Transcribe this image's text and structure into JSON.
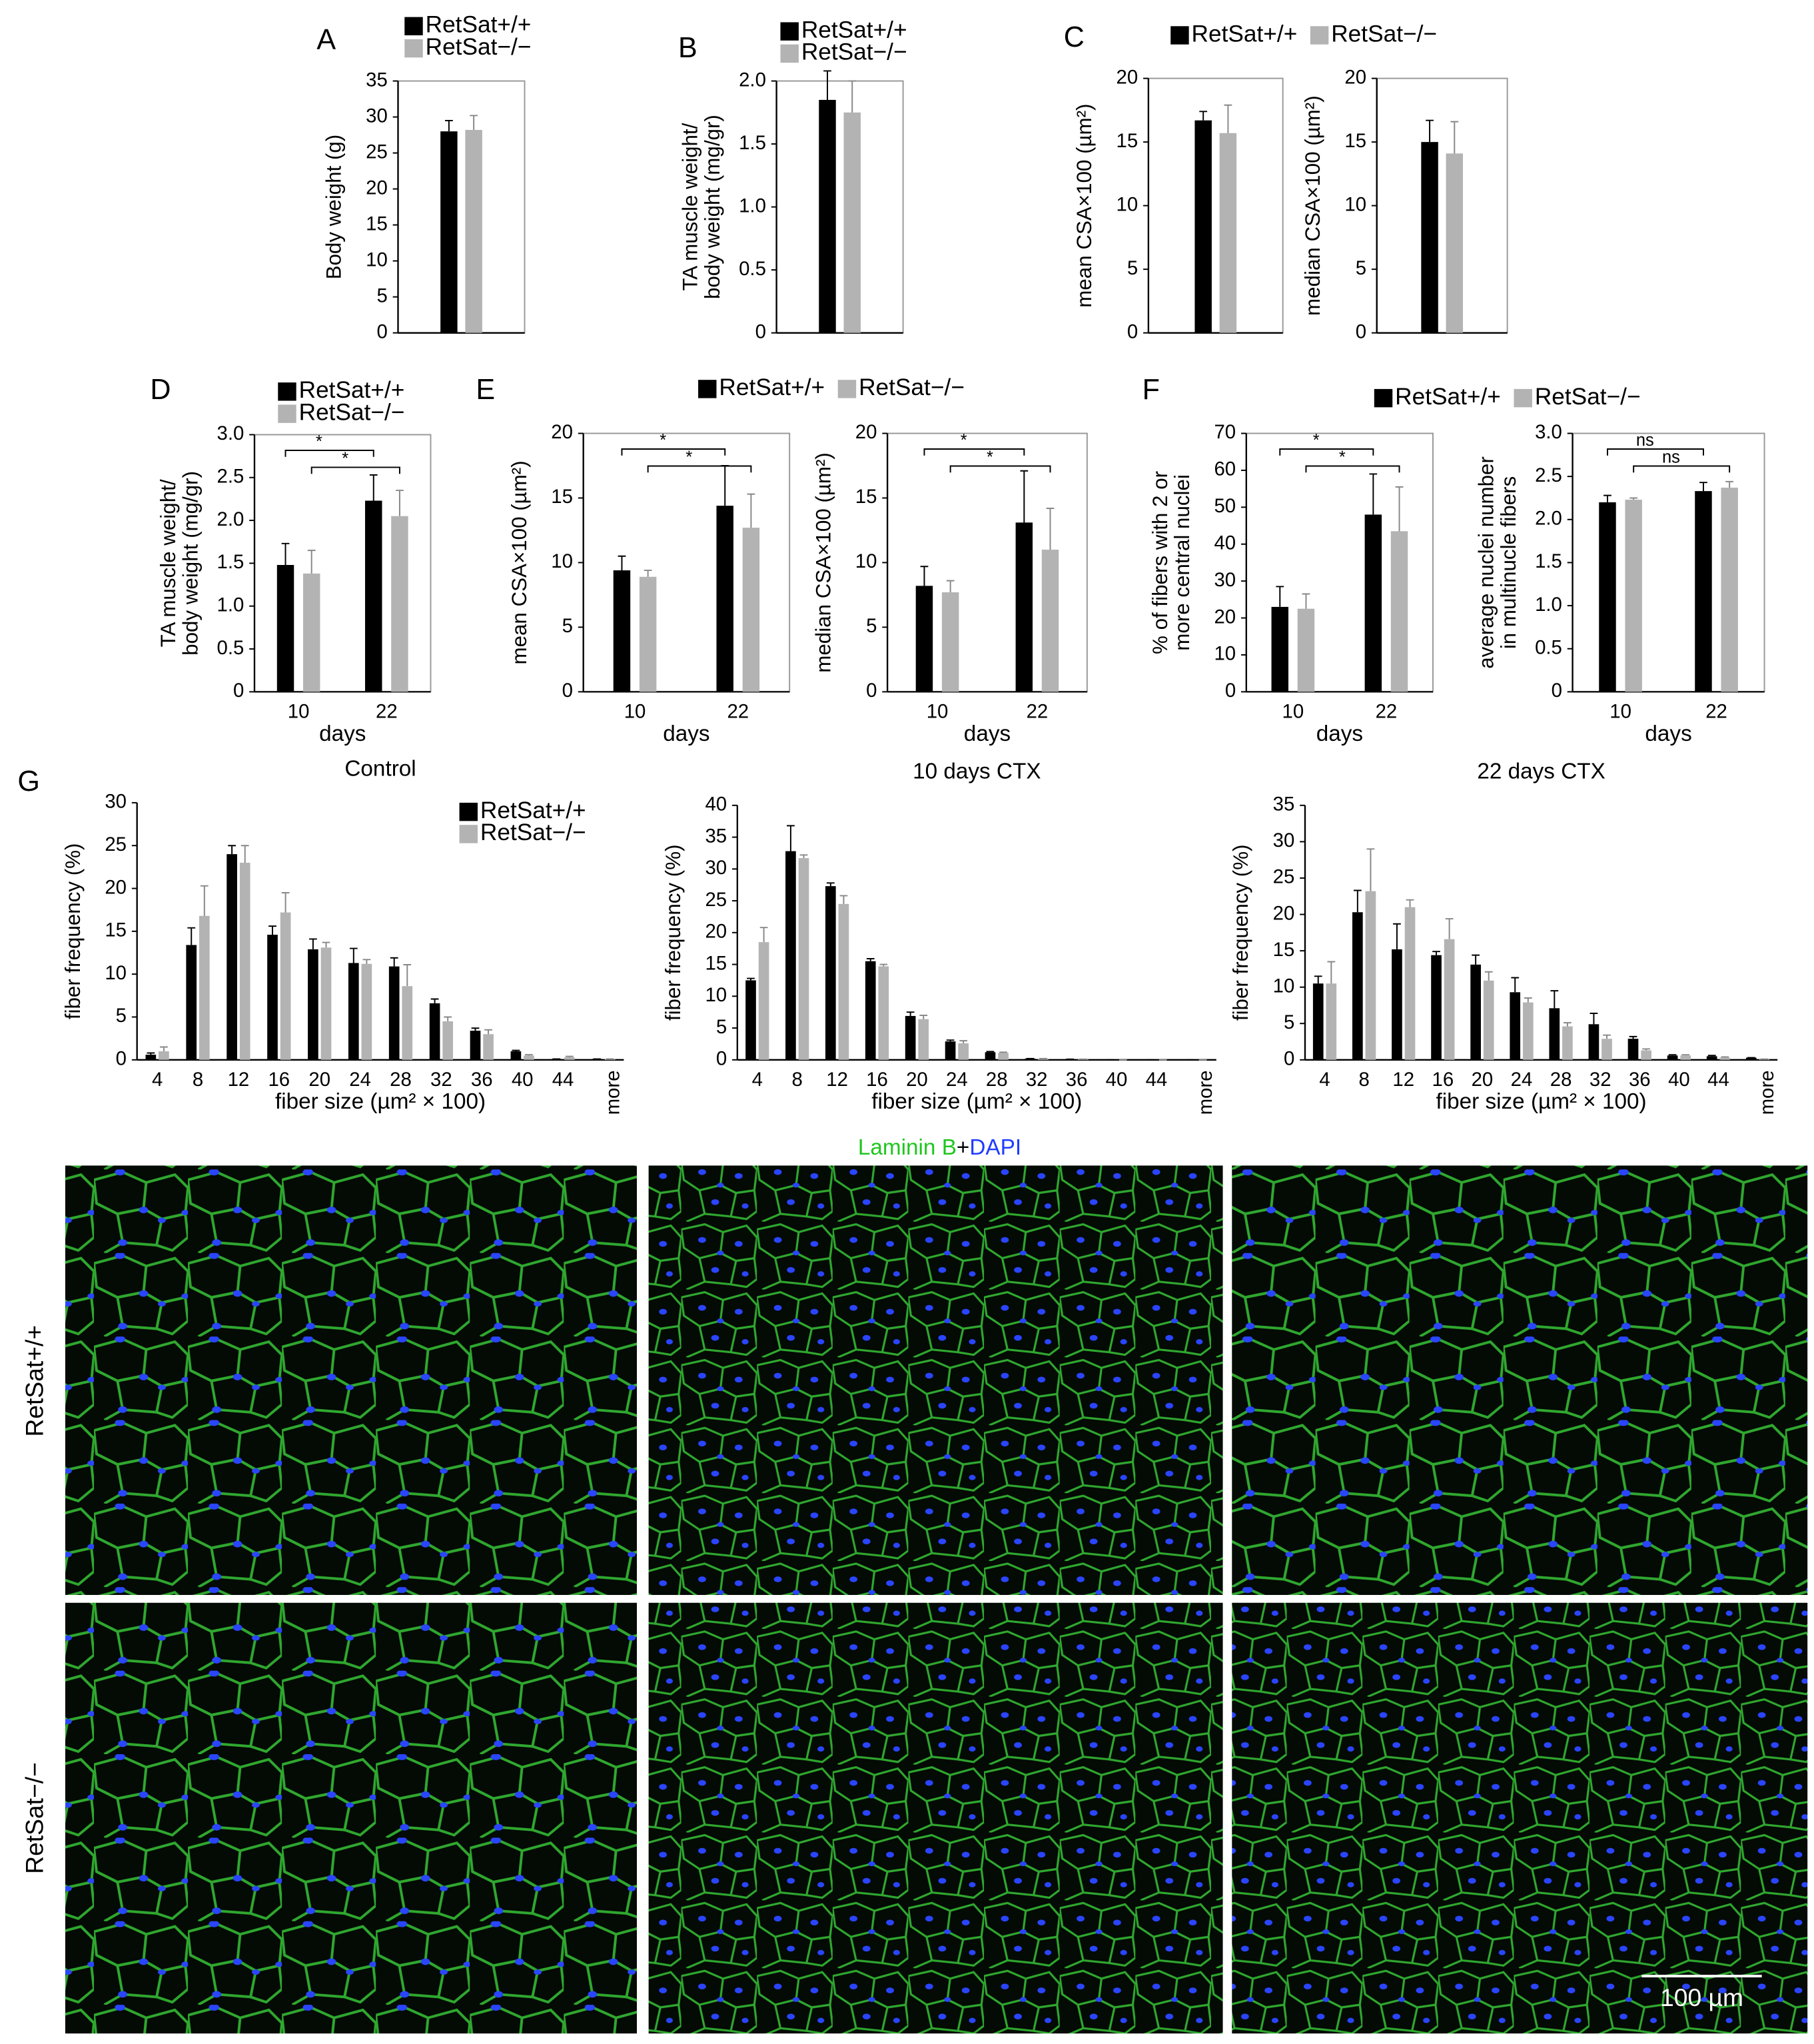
{
  "chart_data": [
    {
      "type": "bar",
      "panel": "A",
      "ylabel": [
        "Body weight (g)"
      ],
      "categories": [
        null
      ],
      "series": [
        {
          "name": "RetSat+/+",
          "color": "#000000",
          "values": [
            28
          ],
          "errors": [
            1.5
          ]
        },
        {
          "name": "RetSat−/−",
          "color": "#b3b3b3",
          "values": [
            28.2
          ],
          "errors": [
            2
          ]
        }
      ],
      "ylim": [
        0,
        35
      ],
      "yticks": [
        0,
        5,
        10,
        15,
        20,
        25,
        30,
        35
      ]
    },
    {
      "type": "bar",
      "panel": "B",
      "ylabel": [
        "TA muscle weight/",
        "body weight (mg/gr)"
      ],
      "categories": [
        null
      ],
      "series": [
        {
          "name": "RetSat+/+",
          "color": "#000000",
          "values": [
            1.85
          ],
          "errors": [
            0.23
          ]
        },
        {
          "name": "RetSat−/−",
          "color": "#b3b3b3",
          "values": [
            1.75
          ],
          "errors": [
            0.25
          ]
        }
      ],
      "ylim": [
        0,
        2
      ],
      "yticks": [
        0,
        0.5,
        {
          "value": 1,
          "label": "1.0"
        },
        1.5,
        {
          "value": 2,
          "label": "2.0"
        }
      ]
    },
    {
      "type": "bar",
      "panel": "C",
      "ylabel": [
        "mean CSA×100 (µm²)"
      ],
      "categories": [
        null
      ],
      "series": [
        {
          "name": "RetSat+/+",
          "color": "#000000",
          "values": [
            16.7
          ],
          "errors": [
            0.7
          ]
        },
        {
          "name": "RetSat−/−",
          "color": "#b3b3b3",
          "values": [
            15.7
          ],
          "errors": [
            2.2
          ]
        }
      ],
      "ylim": [
        0,
        20
      ],
      "yticks": [
        0,
        5,
        10,
        15,
        20
      ]
    },
    {
      "type": "bar",
      "ylabel": [
        "median CSA×100 (µm²)"
      ],
      "categories": [
        null
      ],
      "series": [
        {
          "color": "#000000",
          "values": [
            15.0
          ],
          "errors": [
            1.7
          ]
        },
        {
          "color": "#b3b3b3",
          "values": [
            14.1
          ],
          "errors": [
            2.5
          ]
        }
      ],
      "ylim": [
        0,
        20
      ],
      "yticks": [
        0,
        5,
        10,
        15,
        20
      ]
    },
    {
      "type": "bar",
      "panel": "D",
      "ylabel": [
        "TA muscle weight/",
        "body weight (mg/gr)"
      ],
      "xlabel": "days",
      "categories": [
        "10",
        "22"
      ],
      "series": [
        {
          "name": "RetSat+/+",
          "color": "#000000",
          "values": [
            1.48,
            2.23
          ],
          "errors": [
            0.25,
            0.3
          ]
        },
        {
          "name": "RetSat−/−",
          "color": "#b3b3b3",
          "values": [
            1.38,
            2.05
          ],
          "errors": [
            0.27,
            0.3
          ]
        }
      ],
      "annotations": [
        "*",
        "*"
      ],
      "ylim": [
        0,
        3
      ],
      "yticks": [
        0,
        0.5,
        {
          "value": 1,
          "label": "1.0"
        },
        1.5,
        {
          "value": 2,
          "label": "2.0"
        },
        2.5,
        {
          "value": 3,
          "label": "3.0"
        }
      ]
    },
    {
      "type": "bar",
      "panel": "E",
      "ylabel": [
        "mean CSA×100 (µm²)"
      ],
      "xlabel": "days",
      "categories": [
        "10",
        "22"
      ],
      "series": [
        {
          "name": "RetSat+/+",
          "color": "#000000",
          "values": [
            9.4,
            14.4
          ],
          "errors": [
            1.1,
            3.1
          ]
        },
        {
          "name": "RetSat−/−",
          "color": "#b3b3b3",
          "values": [
            8.9,
            12.7
          ],
          "errors": [
            0.5,
            2.6
          ]
        }
      ],
      "annotations": [
        "*",
        "*"
      ],
      "ylim": [
        0,
        20
      ],
      "yticks": [
        0,
        5,
        10,
        15,
        20
      ]
    },
    {
      "type": "bar",
      "ylabel": [
        "median CSA×100 (µm²)"
      ],
      "xlabel": "days",
      "categories": [
        "10",
        "22"
      ],
      "series": [
        {
          "color": "#000000",
          "values": [
            8.2,
            13.1
          ],
          "errors": [
            1.5,
            4.0
          ]
        },
        {
          "color": "#b3b3b3",
          "values": [
            7.7,
            11.0
          ],
          "errors": [
            0.9,
            3.2
          ]
        }
      ],
      "annotations": [
        "*",
        "*"
      ],
      "ylim": [
        0,
        20
      ],
      "yticks": [
        0,
        5,
        10,
        15,
        20
      ]
    },
    {
      "type": "bar",
      "panel": "F",
      "ylabel": [
        "% of fibers with 2 or",
        "more central nuclei"
      ],
      "xlabel": "days",
      "categories": [
        "10",
        "22"
      ],
      "series": [
        {
          "name": "RetSat+/+",
          "color": "#000000",
          "values": [
            23,
            48
          ],
          "errors": [
            5.5,
            11
          ]
        },
        {
          "name": "RetSat−/−",
          "color": "#b3b3b3",
          "values": [
            22.5,
            43.5
          ],
          "errors": [
            4,
            12
          ]
        }
      ],
      "annotations": [
        "*",
        "*"
      ],
      "ylim": [
        0,
        70
      ],
      "yticks": [
        0,
        10,
        20,
        30,
        40,
        50,
        60,
        70
      ]
    },
    {
      "type": "bar",
      "ylabel": [
        "average nuclei number",
        "in multinucle fibers"
      ],
      "xlabel": "days",
      "categories": [
        "10",
        "22"
      ],
      "series": [
        {
          "color": "#000000",
          "values": [
            2.2,
            2.33
          ],
          "errors": [
            0.08,
            0.1
          ]
        },
        {
          "color": "#b3b3b3",
          "values": [
            2.23,
            2.37
          ],
          "errors": [
            0.02,
            0.07
          ]
        }
      ],
      "annotations": [
        "ns",
        "ns"
      ],
      "ylim": [
        0,
        3
      ],
      "yticks": [
        0,
        0.5,
        {
          "value": 1,
          "label": "1.0"
        },
        1.5,
        {
          "value": 2,
          "label": "2.0"
        },
        2.5,
        {
          "value": 3,
          "label": "3.0"
        }
      ]
    },
    {
      "type": "bar",
      "panel": "G",
      "title": "Control",
      "ylabel": [
        "fiber frequency (%)"
      ],
      "xlabel": "fiber size (µm² × 100)",
      "categories": [
        "4",
        "8",
        "12",
        "16",
        "20",
        "24",
        "28",
        "32",
        "36",
        "40",
        "44",
        "more"
      ],
      "series": [
        {
          "name": "RetSat+/+",
          "color": "#000000",
          "values": [
            0.6,
            13.4,
            24,
            14.6,
            12.9,
            11.3,
            10.9,
            6.6,
            3.4,
            1.0,
            0.1,
            0.1
          ],
          "errors": [
            0.2,
            2,
            1,
            1,
            1.2,
            1.7,
            1,
            0.5,
            0.3,
            0.1,
            0,
            0
          ]
        },
        {
          "name": "RetSat−/−",
          "color": "#b3b3b3",
          "values": [
            1.0,
            16.8,
            23,
            17.2,
            13.1,
            11.2,
            8.6,
            4.5,
            3.0,
            0.5,
            0.3,
            0.1
          ],
          "errors": [
            0.5,
            3.5,
            2,
            2.3,
            0.6,
            0.5,
            2.5,
            0.5,
            0.5,
            0.1,
            0.1,
            0
          ]
        }
      ],
      "ylim": [
        0,
        30
      ],
      "yticks": [
        0,
        5,
        10,
        15,
        20,
        25,
        30
      ]
    },
    {
      "type": "bar",
      "title": "10 days CTX",
      "ylabel": [
        "fiber frequency (%)"
      ],
      "xlabel": "fiber size (µm² × 100)",
      "categories": [
        "4",
        "8",
        "12",
        "16",
        "20",
        "24",
        "28",
        "32",
        "36",
        "40",
        "44",
        "more"
      ],
      "series": [
        {
          "color": "#000000",
          "values": [
            12.5,
            32.8,
            27.3,
            15.5,
            6.9,
            2.9,
            1.2,
            0.2,
            0.1,
            0,
            0,
            0
          ],
          "errors": [
            0.3,
            4,
            0.5,
            0.4,
            0.6,
            0.2,
            0.1,
            0,
            0,
            0,
            0,
            0
          ]
        },
        {
          "color": "#b3b3b3",
          "values": [
            18.5,
            31.7,
            24.5,
            14.7,
            6.4,
            2.6,
            1.1,
            0.2,
            0.1,
            0,
            0,
            0
          ],
          "errors": [
            2.3,
            0.5,
            1.3,
            0.3,
            0.6,
            0.4,
            0.1,
            0,
            0,
            0,
            0,
            0
          ]
        }
      ],
      "ylim": [
        0,
        40
      ],
      "yticks": [
        0,
        5,
        10,
        15,
        20,
        25,
        30,
        35,
        40
      ]
    },
    {
      "type": "bar",
      "title": "22 days CTX",
      "ylabel": [
        "fiber frequency (%)"
      ],
      "xlabel": "fiber size (µm² × 100)",
      "categories": [
        "4",
        "8",
        "12",
        "16",
        "20",
        "24",
        "28",
        "32",
        "36",
        "40",
        "44",
        "more"
      ],
      "series": [
        {
          "color": "#000000",
          "values": [
            10.5,
            20.3,
            15.2,
            14.4,
            13.1,
            9.3,
            7.1,
            4.9,
            2.9,
            0.6,
            0.5,
            0.3
          ],
          "errors": [
            1,
            3,
            3.5,
            0.5,
            1.3,
            2,
            2.4,
            1.5,
            0.3,
            0.1,
            0.1,
            0
          ]
        },
        {
          "color": "#b3b3b3",
          "values": [
            10.5,
            23.2,
            21,
            16.6,
            10.9,
            7.9,
            4.6,
            2.9,
            1.3,
            0.6,
            0.3,
            0.1
          ],
          "errors": [
            3,
            5.8,
            1,
            2.8,
            1.2,
            0.6,
            0.5,
            0.5,
            0.2,
            0.1,
            0.1,
            0
          ]
        }
      ],
      "ylim": [
        0,
        35
      ],
      "yticks": [
        0,
        5,
        10,
        15,
        20,
        25,
        30,
        35
      ]
    }
  ],
  "micrographs": {
    "stain": [
      "Laminin B",
      "+",
      "DAPI"
    ],
    "rows": [
      "RetSat+/+",
      "RetSat−/−"
    ],
    "scale_bar": "100 µm"
  }
}
